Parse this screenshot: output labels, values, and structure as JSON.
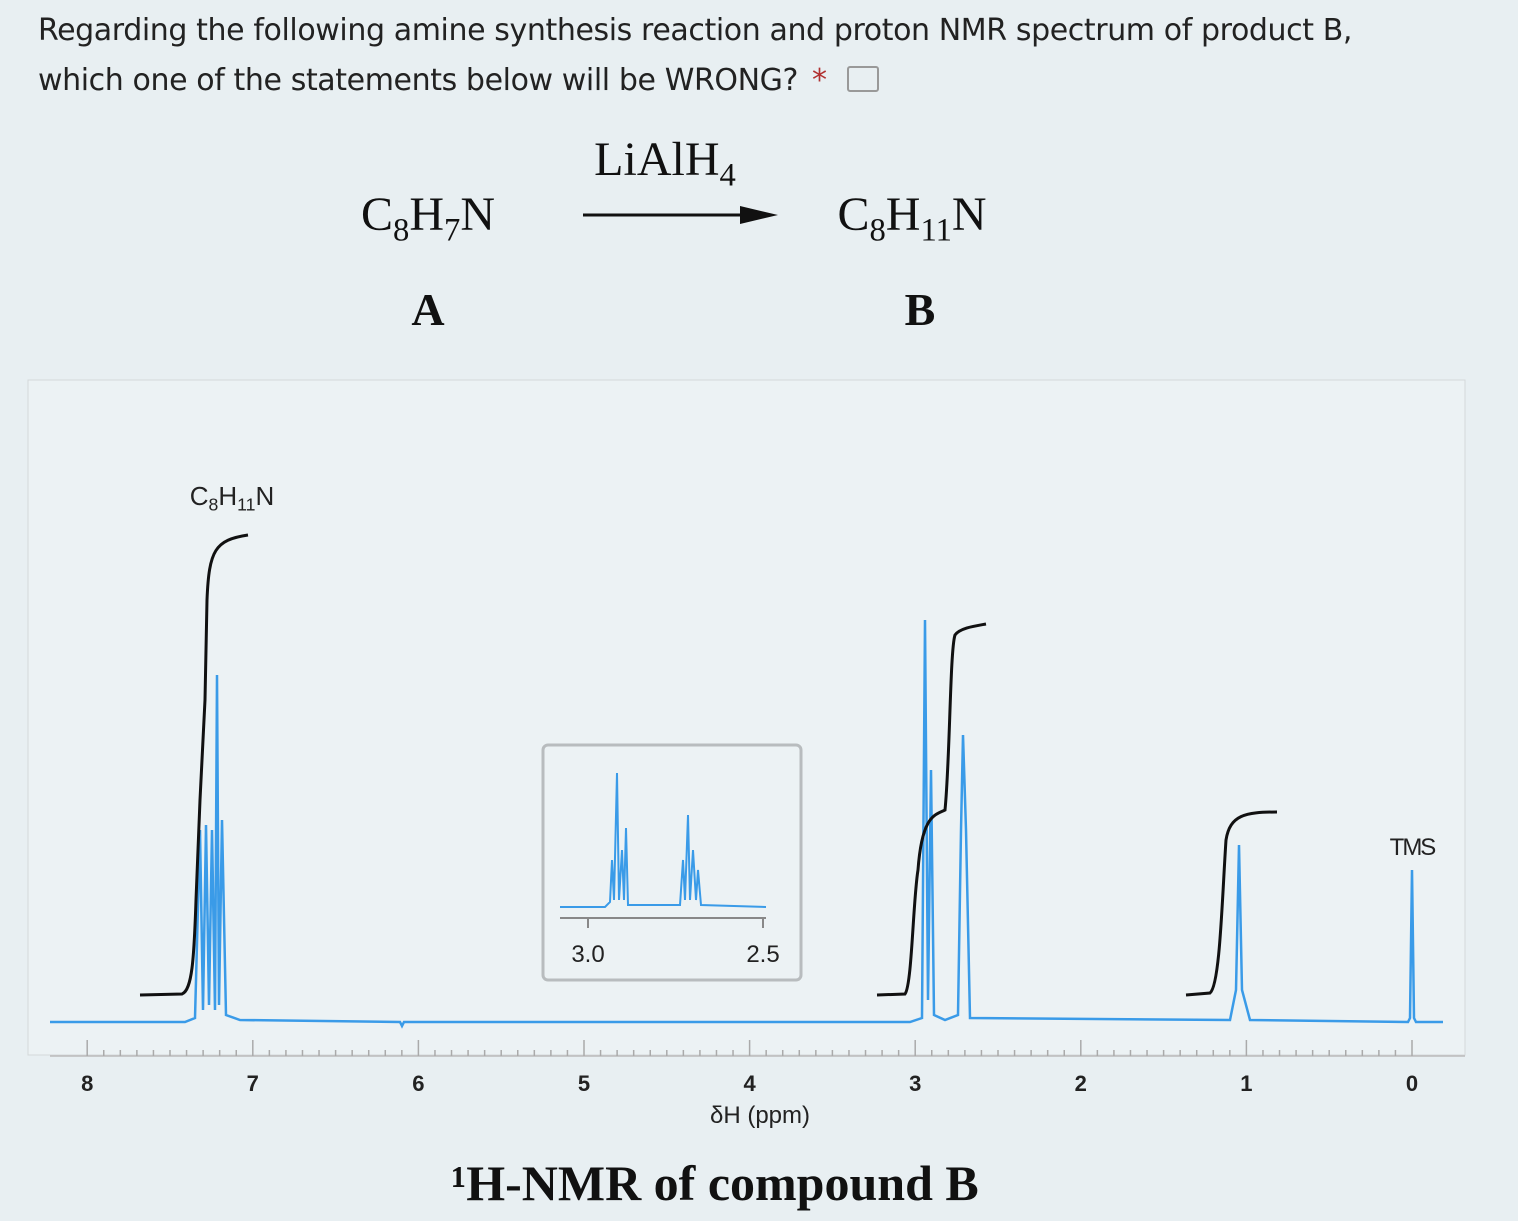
{
  "question": {
    "text": "Regarding the following amine synthesis reaction and proton NMR spectrum of product B, which one of the statements below will be WRONG?",
    "required_mark": "*"
  },
  "reaction": {
    "reagent": "LiAlH4",
    "reactant": {
      "formula": "C8H7N",
      "label": "A"
    },
    "product": {
      "formula": "C8H11N",
      "label": "B"
    }
  },
  "spectrum": {
    "formula_label": "C8H11N",
    "inset_ticks": [
      "3.0",
      "2.5"
    ],
    "tms_label": "TMS",
    "axis_ticks": [
      "8",
      "7",
      "6",
      "5",
      "4",
      "3",
      "2",
      "1",
      "0"
    ],
    "axis_label": "δH (ppm)",
    "caption": "¹H-NMR of compound B"
  }
}
